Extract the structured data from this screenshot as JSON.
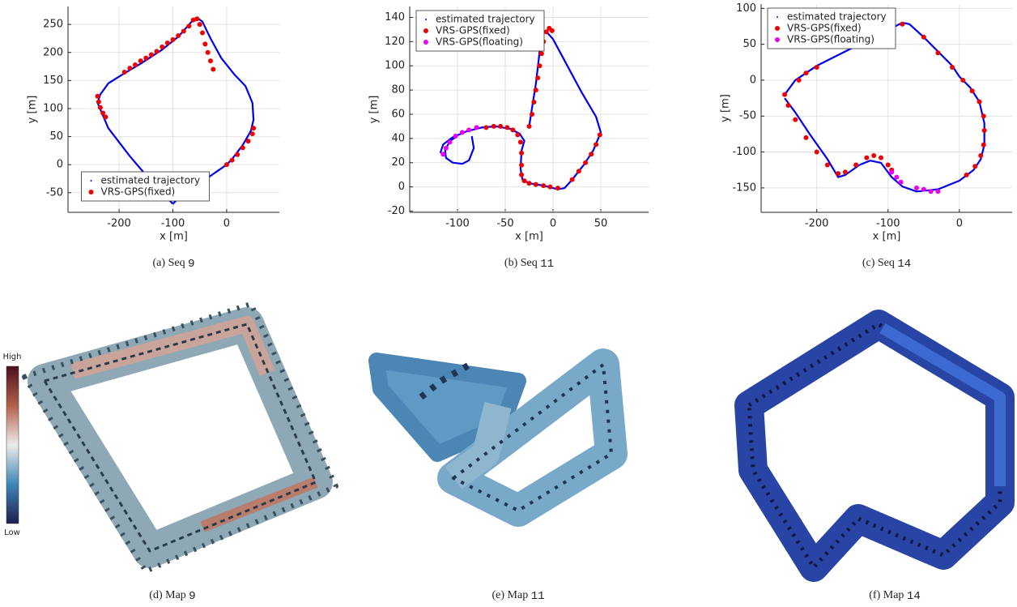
{
  "chart_data": [
    {
      "type": "line",
      "xlabel": "x [m]",
      "ylabel": "y [m]",
      "xlim": [
        -295,
        98
      ],
      "ylim": [
        -85,
        282
      ],
      "xticks": [
        -200,
        -100,
        0
      ],
      "yticks": [
        -50,
        0,
        50,
        100,
        150,
        200,
        250
      ],
      "grid": true,
      "legend": "lower center",
      "caption_label": "(a)",
      "caption_text": "Seq",
      "caption_code": "9",
      "series": [
        {
          "name": "estimated trajectory",
          "color": "#0000ee",
          "mode": "line",
          "x": [
            -100,
            -140,
            -180,
            -220,
            -240,
            -235,
            -220,
            -195,
            -160,
            -120,
            -90,
            -65,
            -55,
            -45,
            -30,
            -10,
            15,
            35,
            48,
            50,
            45,
            30,
            10,
            0,
            -30,
            -60,
            -90,
            -100
          ],
          "values": [
            -70,
            -30,
            15,
            65,
            110,
            125,
            145,
            160,
            180,
            205,
            228,
            255,
            262,
            255,
            225,
            190,
            160,
            140,
            110,
            80,
            60,
            35,
            10,
            0,
            -20,
            -40,
            -60,
            -70
          ]
        },
        {
          "name": "VRS-GPS(fixed)",
          "color": "#ee0000",
          "mode": "points",
          "x": [
            -190,
            -180,
            -170,
            -160,
            -150,
            -140,
            -130,
            -120,
            -110,
            -100,
            -90,
            -80,
            -70,
            -62,
            -55,
            -50,
            -45,
            -40,
            -35,
            -30,
            -25,
            -240,
            -238,
            -235,
            -230,
            -225,
            0,
            10,
            20,
            30,
            40,
            48,
            50
          ],
          "values": [
            165,
            172,
            178,
            185,
            190,
            196,
            202,
            210,
            217,
            223,
            230,
            238,
            247,
            258,
            260,
            250,
            235,
            215,
            200,
            185,
            170,
            122,
            112,
            102,
            92,
            85,
            0,
            8,
            18,
            30,
            42,
            55,
            65
          ]
        }
      ]
    },
    {
      "type": "line",
      "xlabel": "x [m]",
      "ylabel": "y [m]",
      "xlim": [
        -150,
        100
      ],
      "ylim": [
        -21,
        149
      ],
      "xticks": [
        -100,
        -50,
        0,
        50
      ],
      "yticks": [
        -20,
        0,
        20,
        40,
        60,
        80,
        100,
        120,
        140
      ],
      "grid": true,
      "legend": "upper left",
      "caption_label": "(b)",
      "caption_text": "Seq",
      "caption_code": "11",
      "series": [
        {
          "name": "estimated trajectory",
          "color": "#0000ee",
          "mode": "line",
          "x": [
            -118,
            -115,
            -105,
            -90,
            -75,
            -60,
            -45,
            -35,
            -30,
            -33,
            -34,
            -32,
            -25,
            -10,
            5,
            12,
            20,
            32,
            42,
            50,
            45,
            30,
            15,
            0,
            -8,
            -12,
            -15,
            -18,
            -22,
            -25,
            null,
            -85,
            -83,
            -88,
            -95,
            -105,
            -112,
            -113,
            -108,
            -100
          ],
          "values": [
            28,
            35,
            41,
            46,
            49,
            50,
            48,
            44,
            38,
            30,
            15,
            6,
            3,
            1,
            -2,
            -1,
            6,
            18,
            30,
            45,
            58,
            78,
            100,
            122,
            129,
            126,
            105,
            85,
            65,
            50,
            null,
            42,
            32,
            22,
            19,
            20,
            24,
            30,
            38,
            42
          ]
        },
        {
          "name": "VRS-GPS(fixed)",
          "color": "#ee0000",
          "mode": "points",
          "x": [
            -70,
            -62,
            -55,
            -48,
            -42,
            -37,
            -34,
            -33,
            -33,
            -33,
            -30,
            -25,
            -18,
            -10,
            -3,
            5,
            20,
            27,
            34,
            40,
            45,
            49,
            -25,
            -22,
            -20,
            -18,
            -16,
            -14,
            -12,
            -10,
            -7,
            -4,
            -1
          ],
          "values": [
            49,
            50,
            50,
            49,
            47,
            43,
            37,
            28,
            18,
            10,
            5,
            3,
            2,
            1,
            0,
            -1,
            6,
            13,
            20,
            27,
            35,
            43,
            50,
            60,
            70,
            80,
            90,
            100,
            110,
            120,
            128,
            131,
            129
          ]
        },
        {
          "name": "VRS-GPS(floating)",
          "color": "#ee00ee",
          "mode": "points",
          "x": [
            -115,
            -112,
            -108,
            -102,
            -95,
            -88,
            -80
          ],
          "values": [
            27,
            32,
            37,
            42,
            45,
            47,
            49
          ]
        }
      ]
    },
    {
      "type": "line",
      "xlabel": "x [m]",
      "ylabel": "y [m]",
      "xlim": [
        -278,
        74
      ],
      "ylim": [
        -184,
        106
      ],
      "xticks": [
        -200,
        -100,
        0
      ],
      "yticks": [
        -150,
        -100,
        -50,
        0,
        50,
        100
      ],
      "grid": true,
      "legend": "upper left",
      "caption_label": "(c)",
      "caption_text": "Seq",
      "caption_code": "14",
      "series": [
        {
          "name": "estimated trajectory",
          "color": "#0000ee",
          "mode": "line",
          "x": [
            -245,
            -230,
            -200,
            -160,
            -120,
            -80,
            -70,
            -50,
            -30,
            -10,
            0,
            15,
            28,
            35,
            35,
            30,
            20,
            0,
            -30,
            -60,
            -80,
            -95,
            -110,
            -125,
            -140,
            -160,
            -170,
            -185,
            -210,
            -230,
            -245
          ],
          "values": [
            -20,
            0,
            20,
            40,
            60,
            80,
            78,
            60,
            40,
            20,
            5,
            -10,
            -30,
            -60,
            -90,
            -110,
            -125,
            -140,
            -152,
            -155,
            -148,
            -135,
            -115,
            -112,
            -118,
            -132,
            -135,
            -110,
            -75,
            -45,
            -25
          ]
        },
        {
          "name": "VRS-GPS(fixed)",
          "color": "#ee0000",
          "mode": "points",
          "x": [
            -225,
            -215,
            -200,
            -80,
            -50,
            -30,
            -10,
            5,
            18,
            28,
            34,
            35,
            34,
            30,
            22,
            10,
            -245,
            -240,
            -230,
            -215,
            -200,
            -185,
            -170,
            -160,
            -145,
            -130,
            -120,
            -110,
            -100,
            -95
          ],
          "values": [
            0,
            10,
            18,
            78,
            60,
            38,
            18,
            0,
            -15,
            -30,
            -50,
            -70,
            -90,
            -105,
            -120,
            -132,
            -20,
            -35,
            -55,
            -80,
            -100,
            -118,
            -130,
            -128,
            -118,
            -108,
            -105,
            -108,
            -118,
            -125
          ]
        },
        {
          "name": "VRS-GPS(floating)",
          "color": "#ee00ee",
          "mode": "points",
          "x": [
            -95,
            -88,
            -82,
            -60,
            -50,
            -40,
            -30
          ],
          "values": [
            -128,
            -135,
            -142,
            -150,
            -152,
            -155,
            -155
          ]
        }
      ]
    }
  ],
  "maps": [
    {
      "caption_label": "(d)",
      "caption_text": "Map",
      "caption_code": "9"
    },
    {
      "caption_label": "(e)",
      "caption_text": "Map",
      "caption_code": "11"
    },
    {
      "caption_label": "(f)",
      "caption_text": "Map",
      "caption_code": "14"
    }
  ],
  "colorbar": {
    "high": "High",
    "low": "Low"
  }
}
